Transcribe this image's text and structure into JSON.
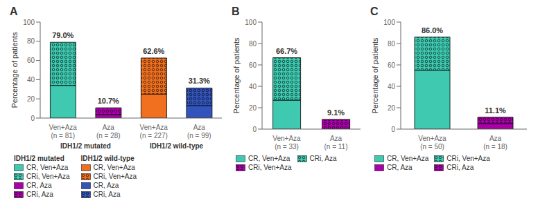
{
  "chart_data": [
    {
      "type": "bar",
      "title": "A",
      "stacked": true,
      "grid": false,
      "legend": "bottom",
      "ylabel": "Percentage of patients",
      "ylim": [
        0,
        100
      ],
      "yticks": [
        0,
        20,
        40,
        60,
        80,
        100
      ],
      "categories": [
        "Ven+Aza\n(n = 81)",
        "Aza\n(n = 28)",
        "Ven+Aza\n(n = 227)",
        "Aza\n(n = 99)"
      ],
      "series": [
        {
          "name": "CR, Ven+Aza",
          "group": "IDH1/2 mutated",
          "color": "#3EC9B0",
          "values": [
            34.0,
            null,
            null,
            null
          ]
        },
        {
          "name": "CRi, Ven+Aza",
          "group": "IDH1/2 mutated",
          "color": "#3EC9B0",
          "marker": "circles",
          "values": [
            45.0,
            null,
            null,
            null
          ]
        },
        {
          "name": "CR, Aza",
          "group": "IDH1/2 mutated",
          "color": "#AA00AA",
          "values": [
            null,
            3.6,
            null,
            null
          ]
        },
        {
          "name": "CRi, Aza",
          "group": "IDH1/2 mutated",
          "color": "#AA00AA",
          "marker": "circles",
          "values": [
            null,
            7.1,
            null,
            null
          ]
        },
        {
          "name": "CR, Ven+Aza",
          "group": "IDH1/2 wild-type",
          "color": "#F07020",
          "values": [
            null,
            null,
            25.0,
            null
          ]
        },
        {
          "name": "CRi, Ven+Aza",
          "group": "IDH1/2 wild-type",
          "color": "#F07020",
          "marker": "circles",
          "values": [
            null,
            null,
            37.6,
            null
          ]
        },
        {
          "name": "CR, Aza",
          "group": "IDH1/2 wild-type",
          "color": "#3355BB",
          "values": [
            null,
            null,
            null,
            13.0
          ]
        },
        {
          "name": "CRi, Aza",
          "group": "IDH1/2 wild-type",
          "color": "#3355BB",
          "marker": "circles",
          "values": [
            null,
            null,
            null,
            18.3
          ]
        }
      ],
      "annotations": [
        {
          "category": "Ven+Aza\n(n = 81)",
          "value": 79.0,
          "text": "79.0%"
        },
        {
          "category": "Aza\n(n = 28)",
          "value": 10.7,
          "text": "10.7%"
        },
        {
          "category": "Ven+Aza\n(n = 227)",
          "value": 62.6,
          "text": "62.6%"
        },
        {
          "category": "Aza\n(n = 99)",
          "value": 31.3,
          "text": "31.3%"
        }
      ]
    },
    {
      "type": "bar",
      "title": "B",
      "stacked": true,
      "grid": false,
      "legend": "bottom",
      "ylabel": "Percentage of patients",
      "ylim": [
        0,
        100
      ],
      "yticks": [
        0,
        20,
        40,
        60,
        80,
        100
      ],
      "categories": [
        "Ven+Aza\n(n = 33)",
        "Aza\n(n = 11)"
      ],
      "series": [
        {
          "name": "CR, Ven+Aza",
          "color": "#3EC9B0",
          "values": [
            27.0,
            null
          ]
        },
        {
          "name": "CRi, Ven+Aza",
          "color": "#AA00AA",
          "marker": "circles",
          "values": [
            null,
            9.1
          ]
        },
        {
          "name": "CRi, Aza",
          "color": "#3EC9B0",
          "marker": "circles",
          "values": [
            39.7,
            null
          ]
        }
      ],
      "annotations": [
        {
          "category": "Ven+Aza\n(n = 33)",
          "value": 66.7,
          "text": "66.7%"
        },
        {
          "category": "Aza\n(n = 11)",
          "value": 9.1,
          "text": "9.1%"
        }
      ]
    },
    {
      "type": "bar",
      "title": "C",
      "stacked": true,
      "grid": false,
      "legend": "bottom",
      "ylabel": "Percentage of patients",
      "ylim": [
        0,
        100
      ],
      "yticks": [
        0,
        20,
        40,
        60,
        80,
        100
      ],
      "categories": [
        "Ven+Aza\n(n = 50)",
        "Aza\n(n = 18)"
      ],
      "series": [
        {
          "name": "CR, Ven+Aza",
          "color": "#3EC9B0",
          "values": [
            55.0,
            null
          ]
        },
        {
          "name": "CR, Aza",
          "color": "#AA00AA",
          "values": [
            null,
            5.0
          ]
        },
        {
          "name": "CRi, Ven+Aza",
          "color": "#3EC9B0",
          "marker": "circles",
          "values": [
            31.0,
            null
          ]
        },
        {
          "name": "CRi, Aza",
          "color": "#AA00AA",
          "marker": "circles",
          "values": [
            null,
            6.1
          ]
        }
      ],
      "annotations": [
        {
          "category": "Ven+Aza\n(n = 50)",
          "value": 86.0,
          "text": "86.0%"
        },
        {
          "category": "Aza\n(n = 18)",
          "value": 11.1,
          "text": "11.1%"
        }
      ]
    }
  ]
}
